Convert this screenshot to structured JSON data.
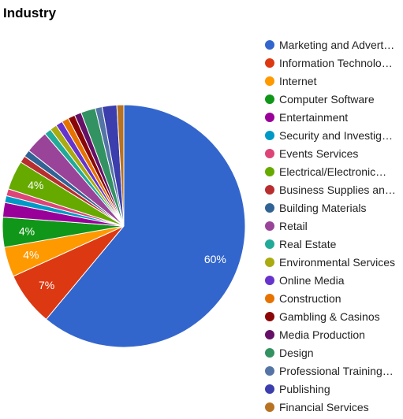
{
  "chart_data": {
    "type": "pie",
    "title": "Industry",
    "legend_position": "right",
    "slices": [
      {
        "label": "Marketing and Advert…",
        "value": 59.7,
        "color": "#3366cc",
        "display": "60%"
      },
      {
        "label": "Information Technolo…",
        "value": 7.0,
        "color": "#dc3912",
        "display": "7%"
      },
      {
        "label": "Internet",
        "value": 3.9,
        "color": "#ff9900",
        "display": "4%"
      },
      {
        "label": "Computer Software",
        "value": 3.9,
        "color": "#109618",
        "display": "4%"
      },
      {
        "label": "Entertainment",
        "value": 1.9,
        "color": "#990099",
        "display": ""
      },
      {
        "label": "Security and Investig…",
        "value": 0.9,
        "color": "#0099c6",
        "display": ""
      },
      {
        "label": "Events Services",
        "value": 0.9,
        "color": "#dd4477",
        "display": ""
      },
      {
        "label": "Electrical/Electronic…",
        "value": 3.8,
        "color": "#66aa00",
        "display": "4%"
      },
      {
        "label": "Business Supplies an…",
        "value": 0.9,
        "color": "#b82e2e",
        "display": ""
      },
      {
        "label": "Building Materials",
        "value": 0.9,
        "color": "#316395",
        "display": ""
      },
      {
        "label": "Retail",
        "value": 3.0,
        "color": "#994499",
        "display": ""
      },
      {
        "label": "Real Estate",
        "value": 0.9,
        "color": "#22aa99",
        "display": ""
      },
      {
        "label": "Environmental Services",
        "value": 0.9,
        "color": "#aaaa11",
        "display": ""
      },
      {
        "label": "Online Media",
        "value": 0.9,
        "color": "#6633cc",
        "display": ""
      },
      {
        "label": "Construction",
        "value": 0.9,
        "color": "#e67300",
        "display": ""
      },
      {
        "label": "Gambling & Casinos",
        "value": 0.9,
        "color": "#8b0707",
        "display": ""
      },
      {
        "label": "Media Production",
        "value": 0.9,
        "color": "#651067",
        "display": ""
      },
      {
        "label": "Design",
        "value": 1.9,
        "color": "#329262",
        "display": ""
      },
      {
        "label": "Professional Training…",
        "value": 0.9,
        "color": "#5574a6",
        "display": ""
      },
      {
        "label": "Publishing",
        "value": 1.9,
        "color": "#3b3eac",
        "display": ""
      },
      {
        "label": "Financial Services",
        "value": 0.9,
        "color": "#b77322",
        "display": ""
      }
    ]
  }
}
